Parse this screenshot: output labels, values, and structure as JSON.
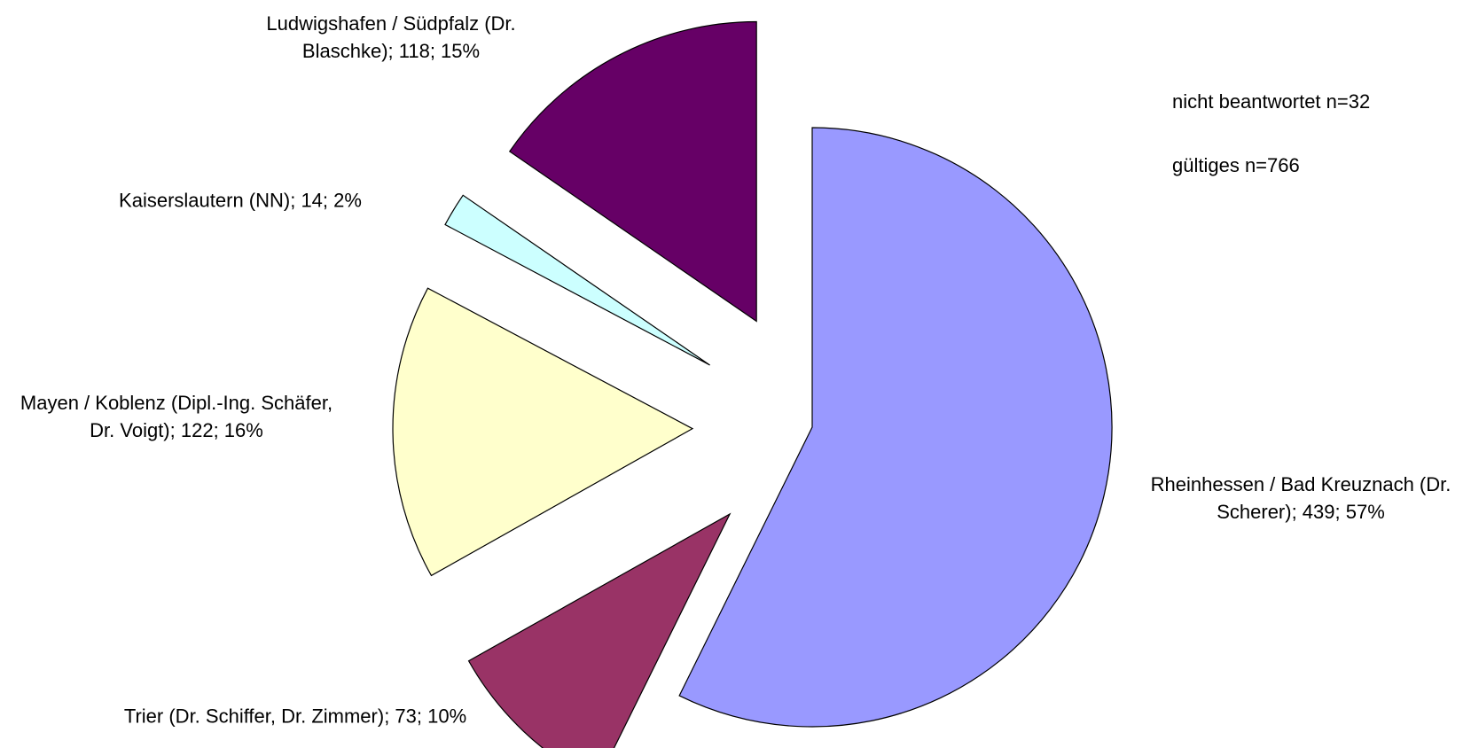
{
  "chart_data": {
    "type": "pie",
    "categories": [
      "Rheinhessen / Bad Kreuznach (Dr. Scherer)",
      "Trier (Dr. Schiffer, Dr. Zimmer)",
      "Mayen / Koblenz (Dipl.-Ing. Schäfer, Dr. Voigt)",
      "Kaiserslautern (NN)",
      "Ludwigshafen / Südpfalz (Dr. Blaschke)"
    ],
    "values": [
      439,
      73,
      122,
      14,
      118
    ],
    "value_labels": [
      "Rheinhessen / Bad Kreuznach (Dr. Scherer); 439; 57%",
      "Trier (Dr. Schiffer, Dr. Zimmer); 73; 10%",
      "Mayen / Koblenz (Dipl.-Ing. Schäfer, Dr. Voigt); 122; 16%",
      "Kaiserslautern (NN); 14; 2%",
      "Ludwigshafen / Südpfalz (Dr. Blaschke); 118; 15%"
    ],
    "colors": [
      "#9999ff",
      "#993366",
      "#ffffcc",
      "#ccffff",
      "#660066"
    ],
    "annotations": [
      "nicht beantwortet n=32",
      "gültiges n=766"
    ]
  }
}
